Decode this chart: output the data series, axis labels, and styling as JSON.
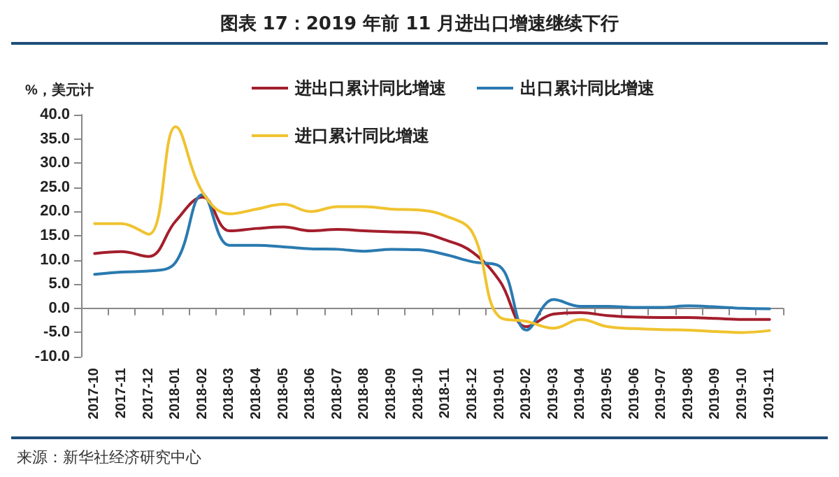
{
  "chart_data": {
    "type": "line",
    "title": "图表 17：2019 年前 11 月进出口增速继续下行",
    "ylabel": "%，美元计",
    "annotations": [
      "来源：新华社经济研究中心"
    ],
    "categories": [
      "2017-10",
      "2017-11",
      "2017-12",
      "2018-01",
      "2018-02",
      "2018-03",
      "2018-04",
      "2018-05",
      "2018-06",
      "2018-07",
      "2018-08",
      "2018-09",
      "2018-10",
      "2018-11",
      "2018-12",
      "2019-01",
      "2019-02",
      "2019-03",
      "2019-04",
      "2019-05",
      "2019-06",
      "2019-07",
      "2019-08",
      "2019-09",
      "2019-10",
      "2019-11"
    ],
    "series": [
      {
        "name": "进出口累计同比增速",
        "color": "#a31e2c",
        "values": [
          11.3,
          11.7,
          10.7,
          18,
          23,
          16,
          16.5,
          16.8,
          16,
          16.3,
          16,
          15.8,
          15.6,
          14.1,
          11.6,
          5.7,
          -3.8,
          -1.2,
          -0.9,
          -1.5,
          -1.8,
          -1.9,
          -1.9,
          -2.1,
          -2.3,
          -2.3
        ]
      },
      {
        "name": "出口累计同比增速",
        "color": "#2a7ab0",
        "values": [
          7,
          7.5,
          7.7,
          9.5,
          23.5,
          13,
          13,
          12.7,
          12.3,
          12.2,
          11.8,
          12.2,
          12.1,
          11.1,
          9.6,
          8.7,
          -4.5,
          1.8,
          0.4,
          0.4,
          0.2,
          0.2,
          0.5,
          0.3,
          0,
          -0.1
        ]
      },
      {
        "name": "进口累计同比增速",
        "color": "#f0c330",
        "values": [
          17.5,
          17.5,
          15.3,
          37.5,
          24,
          19.5,
          20.5,
          21.5,
          20,
          21,
          21,
          20.5,
          20.3,
          19.1,
          15.6,
          -1.8,
          -2.7,
          -4.1,
          -2.3,
          -3.8,
          -4.2,
          -4.4,
          -4.5,
          -4.8,
          -5,
          -4.6
        ]
      }
    ],
    "ylim": [
      -10,
      40
    ],
    "yticks": [
      {
        "value": -10,
        "label": "-10.0"
      },
      {
        "value": -5,
        "label": "-5.0"
      },
      {
        "value": 0,
        "label": "0.0"
      },
      {
        "value": 5,
        "label": "5.0"
      },
      {
        "value": 10,
        "label": "10.0"
      },
      {
        "value": 15,
        "label": "15.0"
      },
      {
        "value": 20,
        "label": "20.0"
      },
      {
        "value": 25,
        "label": "25.0"
      },
      {
        "value": 30,
        "label": "30.0"
      },
      {
        "value": 35,
        "label": "35.0"
      },
      {
        "value": 40,
        "label": "40.0"
      }
    ],
    "legend": "top",
    "marker": "none",
    "line_style": "solid"
  }
}
